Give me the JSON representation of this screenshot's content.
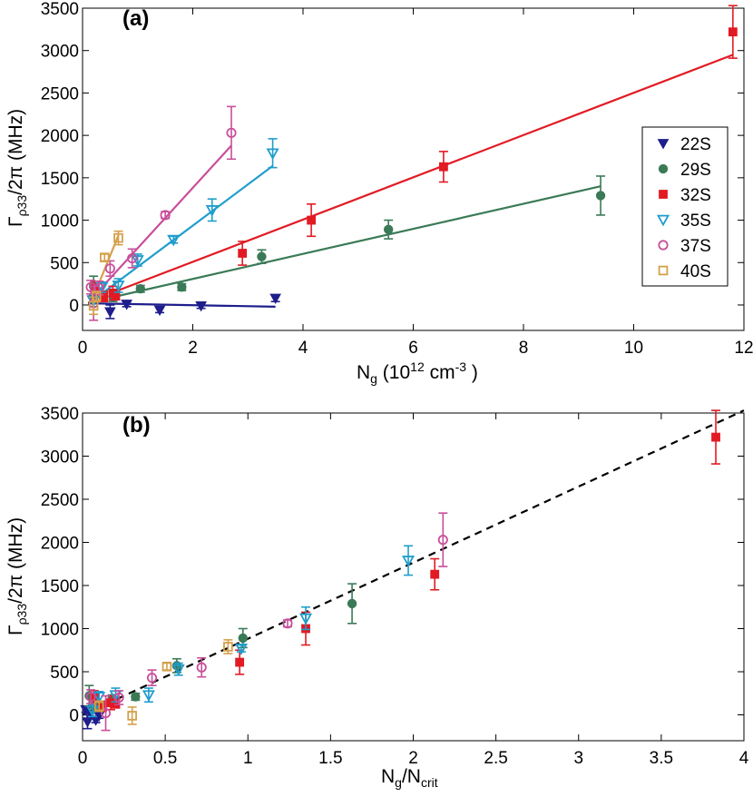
{
  "chart_data": [
    {
      "type": "scatter",
      "panel_label": "(a)",
      "title": "",
      "xlabel": {
        "main": "N",
        "sub": "g",
        "rest": " (10",
        "sup": "12",
        "unit": " cm",
        "unit_sup": "-3",
        "close": " )"
      },
      "ylabel": {
        "main": "Γ",
        "sub": "ρ33",
        "rest": "/2π  (MHz)"
      },
      "xlim": [
        0,
        12
      ],
      "ylim": [
        -300,
        3500
      ],
      "xticks": [
        0,
        2,
        4,
        6,
        8,
        10,
        12
      ],
      "yticks": [
        0,
        500,
        1000,
        1500,
        2000,
        2500,
        3000,
        3500
      ],
      "xtick_labels": [
        "0",
        "2",
        "4",
        "6",
        "8",
        "10",
        "12"
      ],
      "ytick_labels": [
        "0",
        "500",
        "1000",
        "1500",
        "2000",
        "2500",
        "3000",
        "3500"
      ],
      "legend_position": "right",
      "series": [
        {
          "name": "22S",
          "color": "#1e1e8c",
          "marker": "triangle-down-filled",
          "points": [
            [
              0.18,
              60,
              30
            ],
            [
              0.5,
              -80,
              80
            ],
            [
              0.8,
              10,
              30
            ],
            [
              1.4,
              -60,
              30
            ],
            [
              2.15,
              -10,
              30
            ],
            [
              3.5,
              80,
              40
            ]
          ],
          "fit": [
            [
              0.1,
              20
            ],
            [
              3.5,
              -20
            ]
          ]
        },
        {
          "name": "29S",
          "color": "#3b7a57",
          "marker": "circle-filled",
          "points": [
            [
              0.2,
              220,
              120
            ],
            [
              0.38,
              100,
              60
            ],
            [
              0.55,
              100,
              60
            ],
            [
              1.05,
              190,
              40
            ],
            [
              1.8,
              210,
              40
            ],
            [
              3.25,
              570,
              80
            ],
            [
              5.55,
              890,
              110
            ],
            [
              9.4,
              1290,
              230
            ]
          ],
          "fit": [
            [
              0.6,
              100
            ],
            [
              9.4,
              1400
            ]
          ]
        },
        {
          "name": "32S",
          "color": "#e21a23",
          "marker": "square-filled",
          "points": [
            [
              0.22,
              200,
              80
            ],
            [
              0.38,
              100,
              60
            ],
            [
              0.55,
              140,
              80
            ],
            [
              0.6,
              110,
              50
            ],
            [
              2.9,
              610,
              140
            ],
            [
              4.15,
              1000,
              190
            ],
            [
              6.55,
              1630,
              180
            ],
            [
              11.8,
              3220,
              310
            ]
          ],
          "fit": [
            [
              0.6,
              160
            ],
            [
              11.8,
              2950
            ]
          ]
        },
        {
          "name": "35S",
          "color": "#1f9dcc",
          "marker": "triangle-down-open",
          "points": [
            [
              0.2,
              50,
              70
            ],
            [
              0.35,
              210,
              60
            ],
            [
              0.65,
              230,
              80
            ],
            [
              1.0,
              530,
              70
            ],
            [
              1.65,
              770,
              40
            ],
            [
              2.35,
              1120,
              130
            ],
            [
              3.45,
              1790,
              170
            ]
          ],
          "fit": [
            [
              0.3,
              110
            ],
            [
              3.45,
              1640
            ]
          ]
        },
        {
          "name": "37S",
          "color": "#c84f9a",
          "marker": "circle-open",
          "points": [
            [
              0.15,
              210,
              80
            ],
            [
              0.2,
              20,
              200
            ],
            [
              0.3,
              200,
              80
            ],
            [
              0.5,
              430,
              90
            ],
            [
              0.9,
              550,
              110
            ],
            [
              1.5,
              1060,
              40
            ],
            [
              2.7,
              2030,
              310
            ]
          ],
          "fit": [
            [
              0.2,
              100
            ],
            [
              2.7,
              1880
            ]
          ]
        },
        {
          "name": "40S",
          "color": "#d4a04a",
          "marker": "square-open",
          "points": [
            [
              0.2,
              -10,
              100
            ],
            [
              0.25,
              100,
              60
            ],
            [
              0.4,
              560,
              40
            ],
            [
              0.65,
              790,
              80
            ]
          ],
          "fit": [
            [
              0.15,
              20
            ],
            [
              0.65,
              820
            ]
          ]
        }
      ]
    },
    {
      "type": "scatter",
      "panel_label": "(b)",
      "title": "",
      "xlabel": {
        "main": "N",
        "sub": "g",
        "rest": "/N",
        "sub2": "crit"
      },
      "ylabel": {
        "main": "Γ",
        "sub": "ρ33",
        "rest": "/2π  (MHz)"
      },
      "xlim": [
        0,
        4
      ],
      "ylim": [
        -300,
        3500
      ],
      "xticks": [
        0,
        0.5,
        1,
        1.5,
        2,
        2.5,
        3,
        3.5,
        4
      ],
      "yticks": [
        0,
        500,
        1000,
        1500,
        2000,
        2500,
        3000,
        3500
      ],
      "xtick_labels": [
        "0",
        "0.5",
        "1",
        "1.5",
        "2",
        "2.5",
        "3",
        "3.5",
        "4"
      ],
      "ytick_labels": [
        "0",
        "500",
        "1000",
        "1500",
        "2000",
        "2500",
        "3000",
        "3500"
      ],
      "fit_line": {
        "style": "dashed",
        "points": [
          [
            0,
            0
          ],
          [
            4,
            3530
          ]
        ]
      },
      "series": [
        {
          "name": "22S",
          "color": "#1e1e8c",
          "marker": "triangle-down-filled",
          "points": [
            [
              0.02,
              60,
              30
            ],
            [
              0.03,
              -80,
              80
            ],
            [
              0.05,
              10,
              30
            ],
            [
              0.08,
              -60,
              30
            ],
            [
              0.1,
              -10,
              30
            ]
          ]
        },
        {
          "name": "29S",
          "color": "#3b7a57",
          "marker": "circle-filled",
          "points": [
            [
              0.04,
              220,
              120
            ],
            [
              0.07,
              100,
              60
            ],
            [
              0.1,
              100,
              60
            ],
            [
              0.18,
              190,
              40
            ],
            [
              0.32,
              210,
              40
            ],
            [
              0.57,
              570,
              80
            ],
            [
              0.97,
              890,
              110
            ],
            [
              1.63,
              1290,
              230
            ]
          ]
        },
        {
          "name": "32S",
          "color": "#e21a23",
          "marker": "square-filled",
          "points": [
            [
              0.07,
              200,
              80
            ],
            [
              0.12,
              100,
              60
            ],
            [
              0.17,
              140,
              80
            ],
            [
              0.2,
              130,
              50
            ],
            [
              0.95,
              610,
              140
            ],
            [
              1.35,
              1000,
              190
            ],
            [
              2.13,
              1630,
              180
            ],
            [
              3.83,
              3220,
              310
            ]
          ]
        },
        {
          "name": "35S",
          "color": "#1f9dcc",
          "marker": "triangle-down-open",
          "points": [
            [
              0.06,
              50,
              70
            ],
            [
              0.1,
              210,
              60
            ],
            [
              0.2,
              230,
              80
            ],
            [
              0.4,
              230,
              80
            ],
            [
              0.58,
              530,
              70
            ],
            [
              0.96,
              770,
              40
            ],
            [
              1.35,
              1120,
              130
            ],
            [
              1.97,
              1790,
              170
            ]
          ]
        },
        {
          "name": "37S",
          "color": "#c84f9a",
          "marker": "circle-open",
          "points": [
            [
              0.05,
              210,
              80
            ],
            [
              0.14,
              20,
              200
            ],
            [
              0.22,
              200,
              80
            ],
            [
              0.42,
              430,
              90
            ],
            [
              0.72,
              550,
              110
            ],
            [
              1.24,
              1060,
              40
            ],
            [
              2.18,
              2030,
              310
            ]
          ]
        },
        {
          "name": "40S",
          "color": "#d4a04a",
          "marker": "square-open",
          "points": [
            [
              0.1,
              100,
              60
            ],
            [
              0.3,
              -10,
              100
            ],
            [
              0.51,
              560,
              40
            ],
            [
              0.88,
              790,
              80
            ]
          ]
        }
      ]
    }
  ]
}
